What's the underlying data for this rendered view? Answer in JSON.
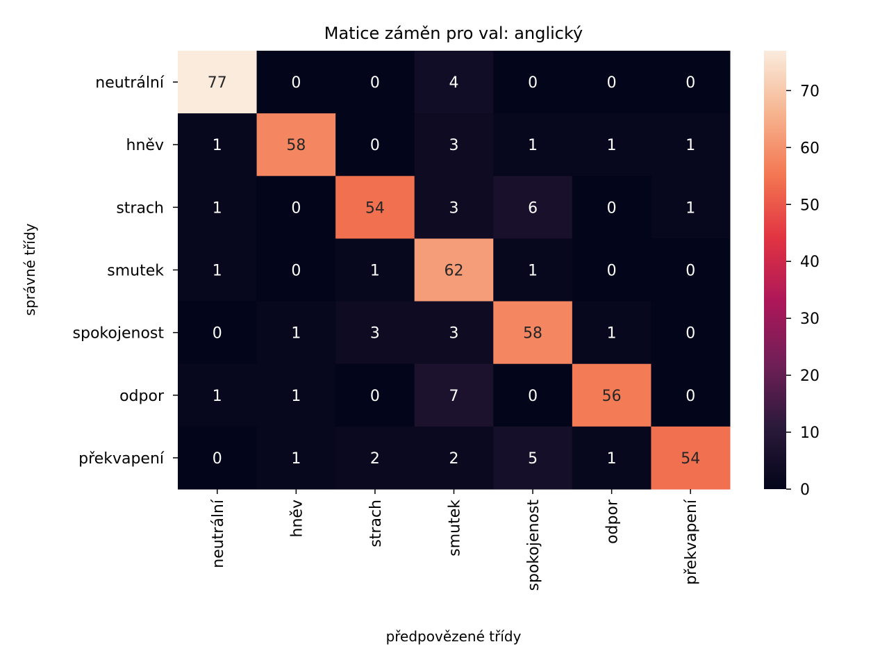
{
  "chart_data": {
    "type": "heatmap",
    "title": "Matice záměn pro val: anglický",
    "xlabel": "předpovězené třídy",
    "ylabel": "správné třídy",
    "x_categories": [
      "neutrální",
      "hněv",
      "strach",
      "smutek",
      "spokojenost",
      "odpor",
      "překvapení"
    ],
    "y_categories": [
      "neutrální",
      "hněv",
      "strach",
      "smutek",
      "spokojenost",
      "odpor",
      "překvapení"
    ],
    "values": [
      [
        77,
        0,
        0,
        4,
        0,
        0,
        0
      ],
      [
        1,
        58,
        0,
        3,
        1,
        1,
        1
      ],
      [
        1,
        0,
        54,
        3,
        6,
        0,
        1
      ],
      [
        1,
        0,
        1,
        62,
        1,
        0,
        0
      ],
      [
        0,
        1,
        3,
        3,
        58,
        1,
        0
      ],
      [
        1,
        1,
        0,
        7,
        0,
        56,
        0
      ],
      [
        0,
        1,
        2,
        2,
        5,
        1,
        54
      ]
    ],
    "colorbar": {
      "min": 0,
      "max": 77,
      "ticks": [
        0,
        10,
        20,
        30,
        40,
        50,
        60,
        70
      ],
      "colormap": "rocket",
      "colors": [
        "#03051a",
        "#2b1a3a",
        "#701f57",
        "#ad1759",
        "#e13342",
        "#f37651",
        "#f6b48f",
        "#faebdd"
      ]
    },
    "annotation_colors": {
      "light": "#ffffff",
      "dark": "#262626"
    }
  }
}
